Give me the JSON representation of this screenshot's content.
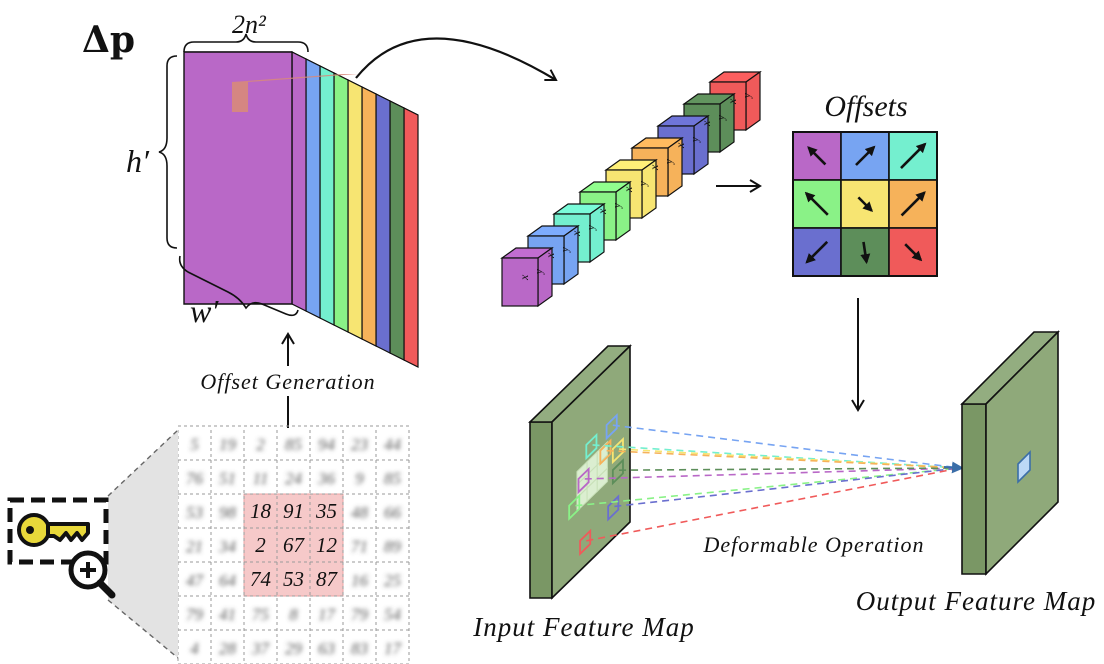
{
  "labels": {
    "delta_p": "Δp",
    "channels": "2n²",
    "height": "h′",
    "width": "w′",
    "offsets_title": "Offsets",
    "offset_generation": "Offset Generation",
    "deformable_operation": "Deformable Operation",
    "input_feature_map": "Input Feature Map",
    "output_feature_map": "Output Feature Map"
  },
  "offset_vector": {
    "cell_labels": [
      [
        "x",
        "y"
      ],
      [
        "x",
        "y"
      ],
      [
        "x",
        "y"
      ],
      [
        "x",
        "y"
      ],
      [
        "x",
        "y"
      ],
      [
        "x",
        "y"
      ],
      [
        "x",
        "y"
      ],
      [
        "x",
        "y"
      ],
      [
        "x",
        "y"
      ]
    ]
  },
  "colors": {
    "purple": "#b968c7",
    "blue": "#77a4f2",
    "teal": "#74efcf",
    "green": "#8af287",
    "yellow": "#f7e572",
    "orange": "#f6b25a",
    "indigo": "#6a6fcf",
    "darkgreen": "#5d8e5a",
    "red": "#f05a5a",
    "feature_map": "#8fa97a",
    "highlight": "#f6c9c9"
  },
  "offset_grid": {
    "icons": [
      [
        "arrow-up-left-icon",
        "arrow-up-right-icon",
        "arrow-up-right-icon"
      ],
      [
        "arrow-up-left-icon",
        "arrow-down-right-icon",
        "arrow-up-right-icon"
      ],
      [
        "arrow-down-left-icon",
        "arrow-down-icon",
        "arrow-down-right-icon"
      ]
    ]
  },
  "number_grid": {
    "highlighted": [
      [
        "18",
        "91",
        "35"
      ],
      [
        "2",
        "67",
        "12"
      ],
      [
        "74",
        "53",
        "87"
      ]
    ],
    "blurred_rows": [
      [
        "5",
        "19",
        "2",
        "85",
        "94",
        "23",
        "44"
      ],
      [
        "76",
        "51",
        "11",
        "24",
        "36",
        "9",
        "85"
      ],
      [
        "53",
        "98",
        "18",
        "91",
        "35",
        "48",
        "66"
      ],
      [
        "21",
        "34",
        "2",
        "67",
        "12",
        "71",
        "89"
      ],
      [
        "47",
        "64",
        "74",
        "53",
        "87",
        "16",
        "25"
      ],
      [
        "79",
        "41",
        "75",
        "8",
        "17",
        "79",
        "54"
      ],
      [
        "4",
        "28",
        "37",
        "29",
        "63",
        "83",
        "17"
      ]
    ]
  }
}
